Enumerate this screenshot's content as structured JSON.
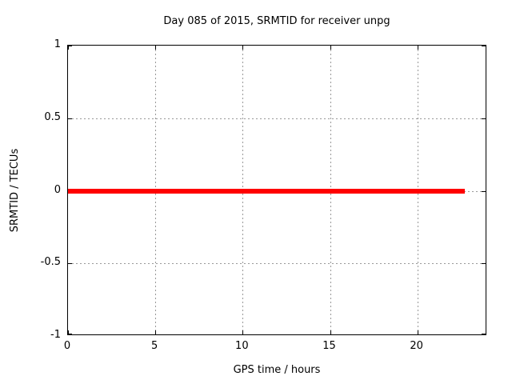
{
  "window": {
    "background": "#ffffff"
  },
  "chart_data": {
    "type": "line",
    "title": "Day 085 of 2015, SRMTID for receiver unpg",
    "xlabel": "GPS time / hours",
    "ylabel": "SRMTID / TECUs",
    "xlim": [
      0,
      24
    ],
    "ylim": [
      -1,
      1
    ],
    "xticks": {
      "values": [
        0,
        5,
        10,
        15,
        20
      ],
      "labels": [
        "0",
        "5",
        "10",
        "15",
        "20"
      ]
    },
    "yticks": {
      "values": [
        1,
        0.5,
        0,
        -0.5,
        -1
      ],
      "labels": [
        "1",
        "0.5",
        "0",
        "-0.5",
        "-1"
      ]
    },
    "grid": true,
    "legend_position": "none",
    "axis_color": "#000000",
    "grid_color": "#999999",
    "background_color": "#ffffff",
    "series": [
      {
        "name": "SRMTID",
        "color": "#ff0000",
        "line_width": 6,
        "x": [
          0,
          22.7
        ],
        "y": [
          0,
          0
        ]
      }
    ]
  }
}
